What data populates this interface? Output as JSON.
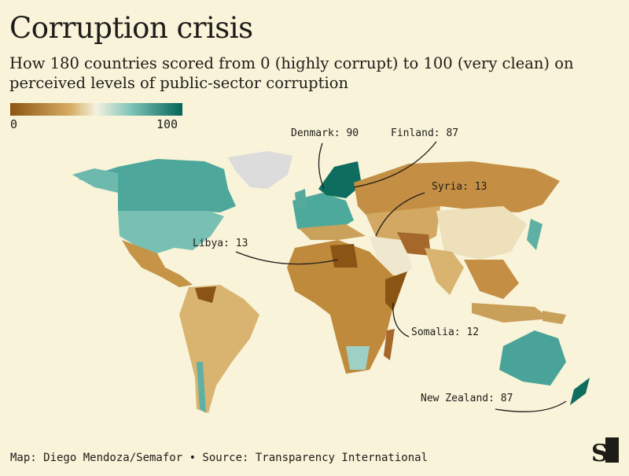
{
  "title": "Corruption crisis",
  "subtitle": "How 180 countries scored from 0 (highly corrupt) to 100 (very clean) on perceived levels of public-sector corruption",
  "legend": {
    "min_label": "0",
    "max_label": "100",
    "colors": [
      "#8c5512",
      "#d7ad62",
      "#f4f1e0",
      "#7ec4b8",
      "#046558"
    ]
  },
  "annotations": [
    {
      "country": "Denmark",
      "score": 90,
      "label": "Denmark: 90"
    },
    {
      "country": "Finland",
      "score": 87,
      "label": "Finland: 87"
    },
    {
      "country": "Syria",
      "score": 13,
      "label": "Syria: 13"
    },
    {
      "country": "Libya",
      "score": 13,
      "label": "Libya: 13"
    },
    {
      "country": "Somalia",
      "score": 12,
      "label": "Somalia: 12"
    },
    {
      "country": "New Zealand",
      "score": 87,
      "label": "New Zealand: 87"
    }
  ],
  "credit": "Map: Diego Mendoza/Semafor • Source: Transparency International",
  "logo": "S"
}
